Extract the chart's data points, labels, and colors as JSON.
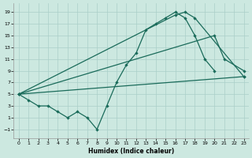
{
  "xlabel": "Humidex (Indice chaleur)",
  "xlim": [
    -0.5,
    23.5
  ],
  "ylim": [
    -2.5,
    20.5
  ],
  "yticks": [
    -1,
    1,
    3,
    5,
    7,
    9,
    11,
    13,
    15,
    17,
    19
  ],
  "xticks": [
    0,
    1,
    2,
    3,
    4,
    5,
    6,
    7,
    8,
    9,
    10,
    11,
    12,
    13,
    14,
    15,
    16,
    17,
    18,
    19,
    20,
    21,
    22,
    23
  ],
  "bg_color": "#cce8e0",
  "line_color": "#1a6b5a",
  "grid_color": "#aacfc8",
  "curve1_x": [
    0,
    1,
    2,
    3,
    4,
    5,
    6,
    7,
    8,
    9,
    10,
    11,
    12,
    13,
    14,
    15,
    16,
    17,
    18,
    19,
    20
  ],
  "curve1_y": [
    5,
    4,
    3,
    3,
    2,
    1,
    2,
    1,
    -1,
    3,
    7,
    10,
    12,
    16,
    17,
    18,
    19,
    18,
    15,
    11,
    9
  ],
  "curve2_x": [
    0,
    23
  ],
  "curve2_y": [
    5,
    8
  ],
  "curve3_x": [
    0,
    16,
    17,
    18,
    23
  ],
  "curve3_y": [
    5,
    18.5,
    19,
    18,
    8
  ],
  "curve4_x": [
    0,
    20,
    21,
    23
  ],
  "curve4_y": [
    5,
    15,
    11,
    9
  ]
}
